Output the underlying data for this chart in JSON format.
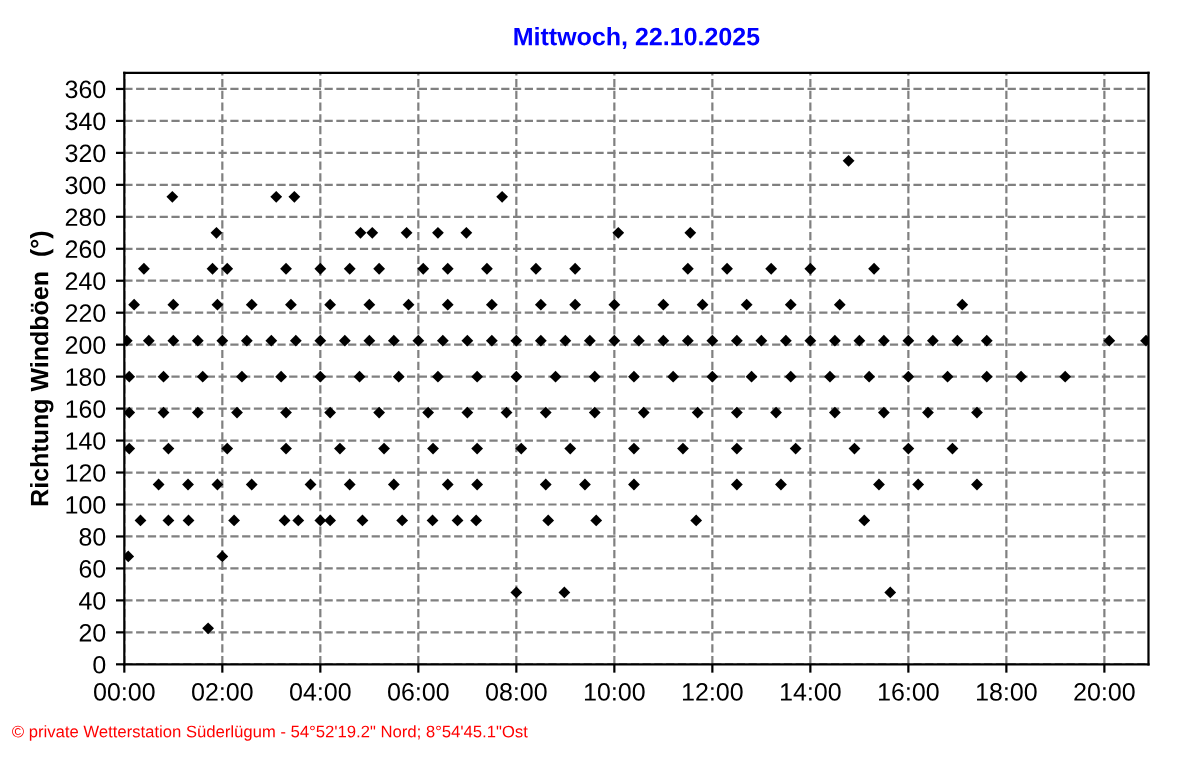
{
  "chart_data": {
    "type": "scatter",
    "title": "Mittwoch, 22.10.2025",
    "ylabel": "Richtung Windböen  (°)",
    "annotations": [
      "© private Wetterstation Süderlügum - 54°52'19.2\" Nord; 8°54'45.1\"Ost"
    ],
    "xlim": [
      0,
      20.9
    ],
    "ylim": [
      0,
      370
    ],
    "xticks": [
      {
        "value": 0,
        "label": "00:00"
      },
      {
        "value": 2,
        "label": "02:00"
      },
      {
        "value": 4,
        "label": "04:00"
      },
      {
        "value": 6,
        "label": "06:00"
      },
      {
        "value": 8,
        "label": "08:00"
      },
      {
        "value": 10,
        "label": "10:00"
      },
      {
        "value": 12,
        "label": "12:00"
      },
      {
        "value": 14,
        "label": "14:00"
      },
      {
        "value": 16,
        "label": "16:00"
      },
      {
        "value": 18,
        "label": "18:00"
      },
      {
        "value": 20,
        "label": "20:00"
      }
    ],
    "yticks": [
      0,
      20,
      40,
      60,
      80,
      100,
      120,
      140,
      160,
      180,
      200,
      220,
      240,
      260,
      280,
      300,
      320,
      340,
      360
    ],
    "grid": true,
    "marker": "diamond",
    "series": [
      {
        "color": "#000000",
        "x": [
          0.05,
          0.5,
          1,
          1.5,
          2,
          2.5,
          3,
          3.5,
          4,
          4.5,
          5,
          5.5,
          6,
          6.5,
          7,
          7.5,
          8,
          8.5,
          9,
          9.5,
          10,
          10.5,
          11,
          11.5,
          12,
          12.5,
          13,
          13.5,
          14,
          14.5,
          15,
          15.5,
          16,
          16.5,
          17,
          17.6,
          20.1,
          20.85,
          0.1,
          0.8,
          1.6,
          2.4,
          3.2,
          4,
          4.8,
          5.6,
          6.4,
          7.2,
          8,
          8.8,
          9.6,
          10.4,
          11.2,
          12,
          12.8,
          13.6,
          14.4,
          15.2,
          16,
          16.8,
          17.6,
          18.3,
          19.2,
          0.1,
          0.8,
          1.5,
          2.3,
          3.3,
          4.2,
          5.2,
          6.2,
          7,
          7.8,
          8.6,
          9.6,
          10.6,
          11.7,
          12.5,
          13.3,
          14.5,
          15.5,
          16.4,
          17.4,
          0.1,
          0.9,
          2.1,
          3.3,
          4.4,
          5.3,
          6.3,
          7.2,
          8.1,
          9.1,
          10.4,
          11.4,
          12.5,
          13.7,
          14.9,
          16,
          16.9,
          0.2,
          1,
          1.9,
          2.6,
          3.4,
          4.2,
          5,
          5.8,
          6.6,
          7.5,
          8.5,
          9.2,
          10,
          11,
          11.8,
          12.7,
          13.6,
          14.6,
          17.1,
          0.4,
          1.8,
          2.1,
          3.3,
          4.0,
          4.6,
          5.2,
          6.1,
          6.6,
          7.4,
          8.4,
          9.2,
          11.5,
          12.3,
          13.2,
          14.0,
          15.3,
          0.7,
          1.3,
          1.9,
          2.6,
          3.8,
          4.6,
          5.5,
          6.6,
          7.2,
          8.6,
          9.4,
          10.4,
          12.5,
          13.4,
          15.4,
          16.2,
          17.4,
          0.33,
          0.9,
          1.31,
          2.24,
          3.27,
          3.55,
          4.0,
          4.2,
          4.86,
          5.67,
          6.29,
          6.8,
          7.18,
          8.65,
          9.63,
          11.67,
          15.1,
          0.08,
          2.0,
          1.71,
          8.0,
          8.98,
          15.63,
          1.88,
          4.82,
          5.06,
          5.76,
          6.4,
          6.98,
          10.08,
          11.55,
          0.98,
          3.1,
          3.47,
          7.71,
          14.78
        ],
        "values": [
          202.5,
          202.5,
          202.5,
          202.5,
          202.5,
          202.5,
          202.5,
          202.5,
          202.5,
          202.5,
          202.5,
          202.5,
          202.5,
          202.5,
          202.5,
          202.5,
          202.5,
          202.5,
          202.5,
          202.5,
          202.5,
          202.5,
          202.5,
          202.5,
          202.5,
          202.5,
          202.5,
          202.5,
          202.5,
          202.5,
          202.5,
          202.5,
          202.5,
          202.5,
          202.5,
          202.5,
          202.5,
          202.5,
          180,
          180,
          180,
          180,
          180,
          180,
          180,
          180,
          180,
          180,
          180,
          180,
          180,
          180,
          180,
          180,
          180,
          180,
          180,
          180,
          180,
          180,
          180,
          180,
          180,
          157.5,
          157.5,
          157.5,
          157.5,
          157.5,
          157.5,
          157.5,
          157.5,
          157.5,
          157.5,
          157.5,
          157.5,
          157.5,
          157.5,
          157.5,
          157.5,
          157.5,
          157.5,
          157.5,
          157.5,
          135,
          135,
          135,
          135,
          135,
          135,
          135,
          135,
          135,
          135,
          135,
          135,
          135,
          135,
          135,
          135,
          135,
          225,
          225,
          225,
          225,
          225,
          225,
          225,
          225,
          225,
          225,
          225,
          225,
          225,
          225,
          225,
          225,
          225,
          225,
          225,
          247.5,
          247.5,
          247.5,
          247.5,
          247.5,
          247.5,
          247.5,
          247.5,
          247.5,
          247.5,
          247.5,
          247.5,
          247.5,
          247.5,
          247.5,
          247.5,
          247.5,
          112.5,
          112.5,
          112.5,
          112.5,
          112.5,
          112.5,
          112.5,
          112.5,
          112.5,
          112.5,
          112.5,
          112.5,
          112.5,
          112.5,
          112.5,
          112.5,
          112.5,
          90,
          90,
          90,
          90,
          90,
          90,
          90,
          90,
          90,
          90,
          90,
          90,
          90,
          90,
          90,
          90,
          90,
          67.5,
          67.5,
          22.5,
          45,
          45,
          45,
          270,
          270,
          270,
          270,
          270,
          270,
          270,
          270,
          292.5,
          292.5,
          292.5,
          292.5,
          315
        ]
      }
    ]
  }
}
